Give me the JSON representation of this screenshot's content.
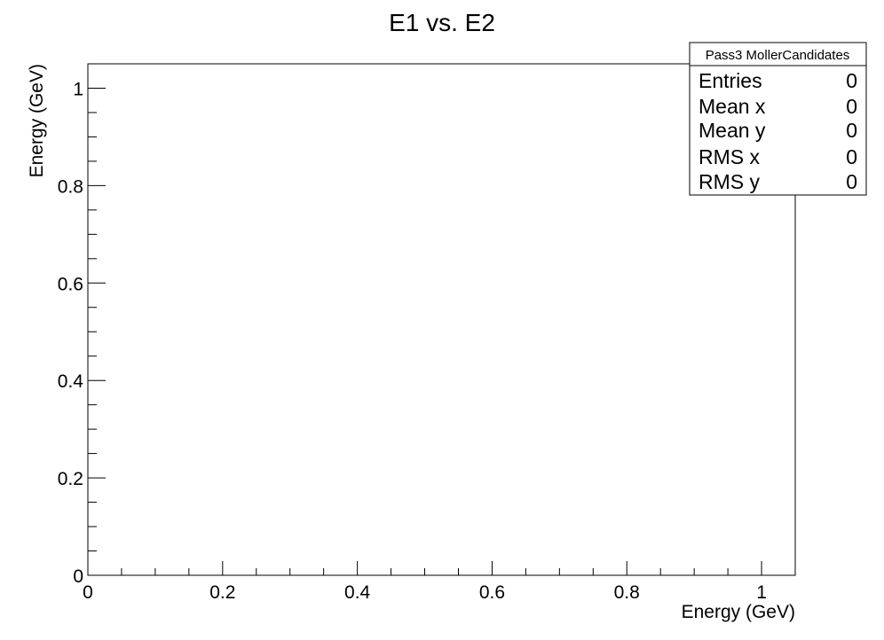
{
  "chart_data": {
    "type": "heatmap",
    "title": "E1 vs. E2",
    "xlabel": "Energy (GeV)",
    "ylabel": "Energy (GeV)",
    "xlim": [
      0,
      1.05
    ],
    "ylim": [
      0,
      1.05
    ],
    "x_ticks": [
      0,
      0.2,
      0.4,
      0.6,
      0.8,
      1
    ],
    "y_ticks": [
      0,
      0.2,
      0.4,
      0.6,
      0.8,
      1
    ],
    "x_tick_labels": [
      "0",
      "0.2",
      "0.4",
      "0.6",
      "0.8",
      "1"
    ],
    "y_tick_labels": [
      "0",
      "0.2",
      "0.4",
      "0.6",
      "0.8",
      "1"
    ],
    "grid": false,
    "values": [],
    "stats_box": {
      "name": "Pass3 MollerCandidates",
      "placement": "top-right",
      "rows": [
        {
          "label": "Entries",
          "value": "0"
        },
        {
          "label": "Mean x",
          "value": "0"
        },
        {
          "label": "Mean y",
          "value": "0"
        },
        {
          "label": "RMS x",
          "value": "0"
        },
        {
          "label": "RMS y",
          "value": "0"
        }
      ]
    }
  }
}
